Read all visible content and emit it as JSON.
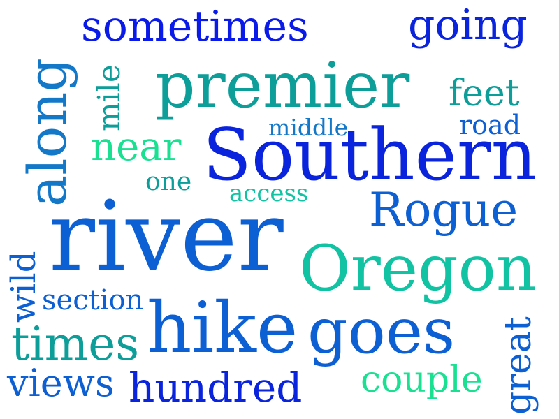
{
  "words": {
    "sometimes": "sometimes",
    "going": "going",
    "along": "along",
    "mile": "mile",
    "premier": "premier",
    "feet": "feet",
    "middle": "middle",
    "road": "road",
    "near": "near",
    "southern": "Southern",
    "one": "one",
    "access": "access",
    "rogue": "Rogue",
    "river": "river",
    "wild": "wild",
    "oregon": "Oregon",
    "section": "section",
    "hike": "hike",
    "goes": "goes",
    "great": "great",
    "times": "times",
    "couple": "couple",
    "views": "views",
    "hundred": "hundred"
  },
  "colors": {
    "blue": "#0a23dc",
    "mid_blue": "#0d5fd4",
    "azure": "#1478c8",
    "teal": "#0d9e9a",
    "sea_green": "#12c3a3",
    "green": "#1ae092",
    "dark_blue": "#0a1ae8"
  }
}
